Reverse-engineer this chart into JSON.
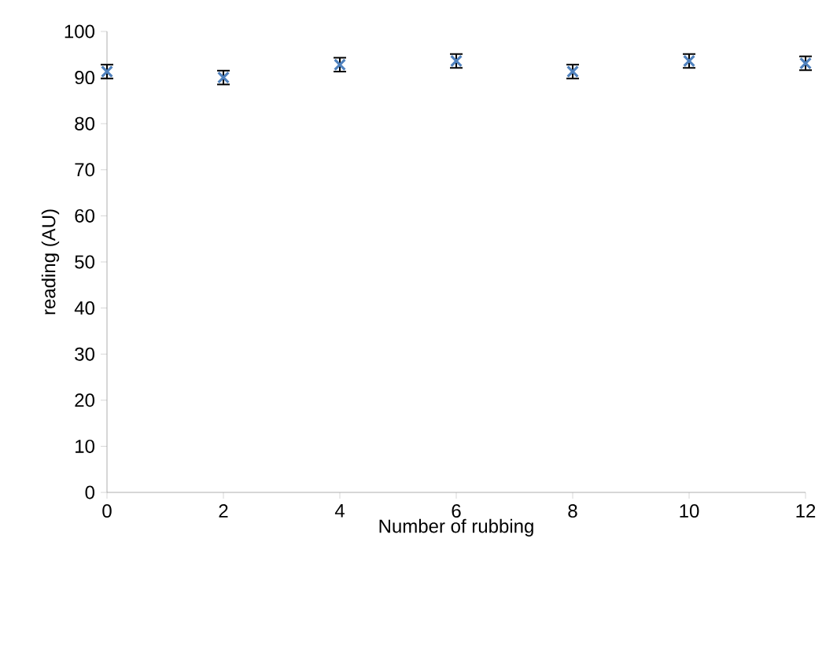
{
  "chart_data": {
    "type": "scatter",
    "xlabel": "Number of rubbing",
    "ylabel": "reading (AU)",
    "x": [
      0,
      2,
      4,
      6,
      8,
      10,
      12
    ],
    "values": [
      91.3,
      90,
      92.8,
      93.6,
      91.3,
      93.6,
      93.1
    ],
    "errors": [
      1.5,
      1.5,
      1.5,
      1.5,
      1.5,
      1.5,
      1.5
    ],
    "color": "#4f81bd",
    "marker": "cross",
    "xlim": [
      0,
      12
    ],
    "xticks": [
      0,
      2,
      4,
      6,
      8,
      10,
      12
    ],
    "ylim": [
      0,
      100
    ],
    "yticks": [
      0,
      10,
      20,
      30,
      40,
      50,
      60,
      70,
      80,
      90,
      100
    ],
    "grid": false
  }
}
